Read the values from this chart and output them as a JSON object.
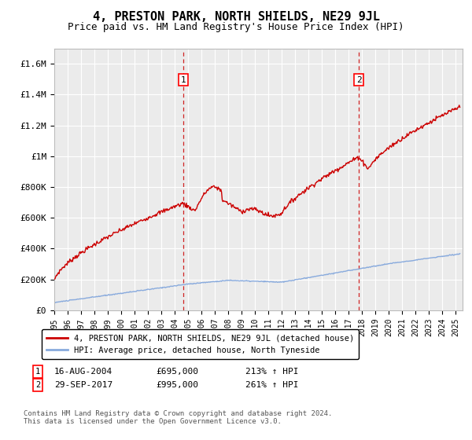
{
  "title": "4, PRESTON PARK, NORTH SHIELDS, NE29 9JL",
  "subtitle": "Price paid vs. HM Land Registry's House Price Index (HPI)",
  "title_fontsize": 11,
  "subtitle_fontsize": 9,
  "ylabel_ticks": [
    "£0",
    "£200K",
    "£400K",
    "£600K",
    "£800K",
    "£1M",
    "£1.2M",
    "£1.4M",
    "£1.6M"
  ],
  "ytick_values": [
    0,
    200000,
    400000,
    600000,
    800000,
    1000000,
    1200000,
    1400000,
    1600000
  ],
  "ylim": [
    0,
    1700000
  ],
  "xlim_start": 1995.0,
  "xlim_end": 2025.5,
  "background_color": "#ffffff",
  "plot_bg_color": "#ebebeb",
  "grid_color": "#ffffff",
  "sale1_x": 2004.62,
  "sale1_y": 695000,
  "sale1_label": "1",
  "sale2_x": 2017.75,
  "sale2_y": 995000,
  "sale2_label": "2",
  "sale_color": "#cc0000",
  "hpi_color": "#88aadd",
  "vline_color": "#cc0000",
  "legend_line1": "4, PRESTON PARK, NORTH SHIELDS, NE29 9JL (detached house)",
  "legend_line2": "HPI: Average price, detached house, North Tyneside",
  "annotation1_date": "16-AUG-2004",
  "annotation1_price": "£695,000",
  "annotation1_hpi": "213% ↑ HPI",
  "annotation2_date": "29-SEP-2017",
  "annotation2_price": "£995,000",
  "annotation2_hpi": "261% ↑ HPI",
  "footer": "Contains HM Land Registry data © Crown copyright and database right 2024.\nThis data is licensed under the Open Government Licence v3.0."
}
